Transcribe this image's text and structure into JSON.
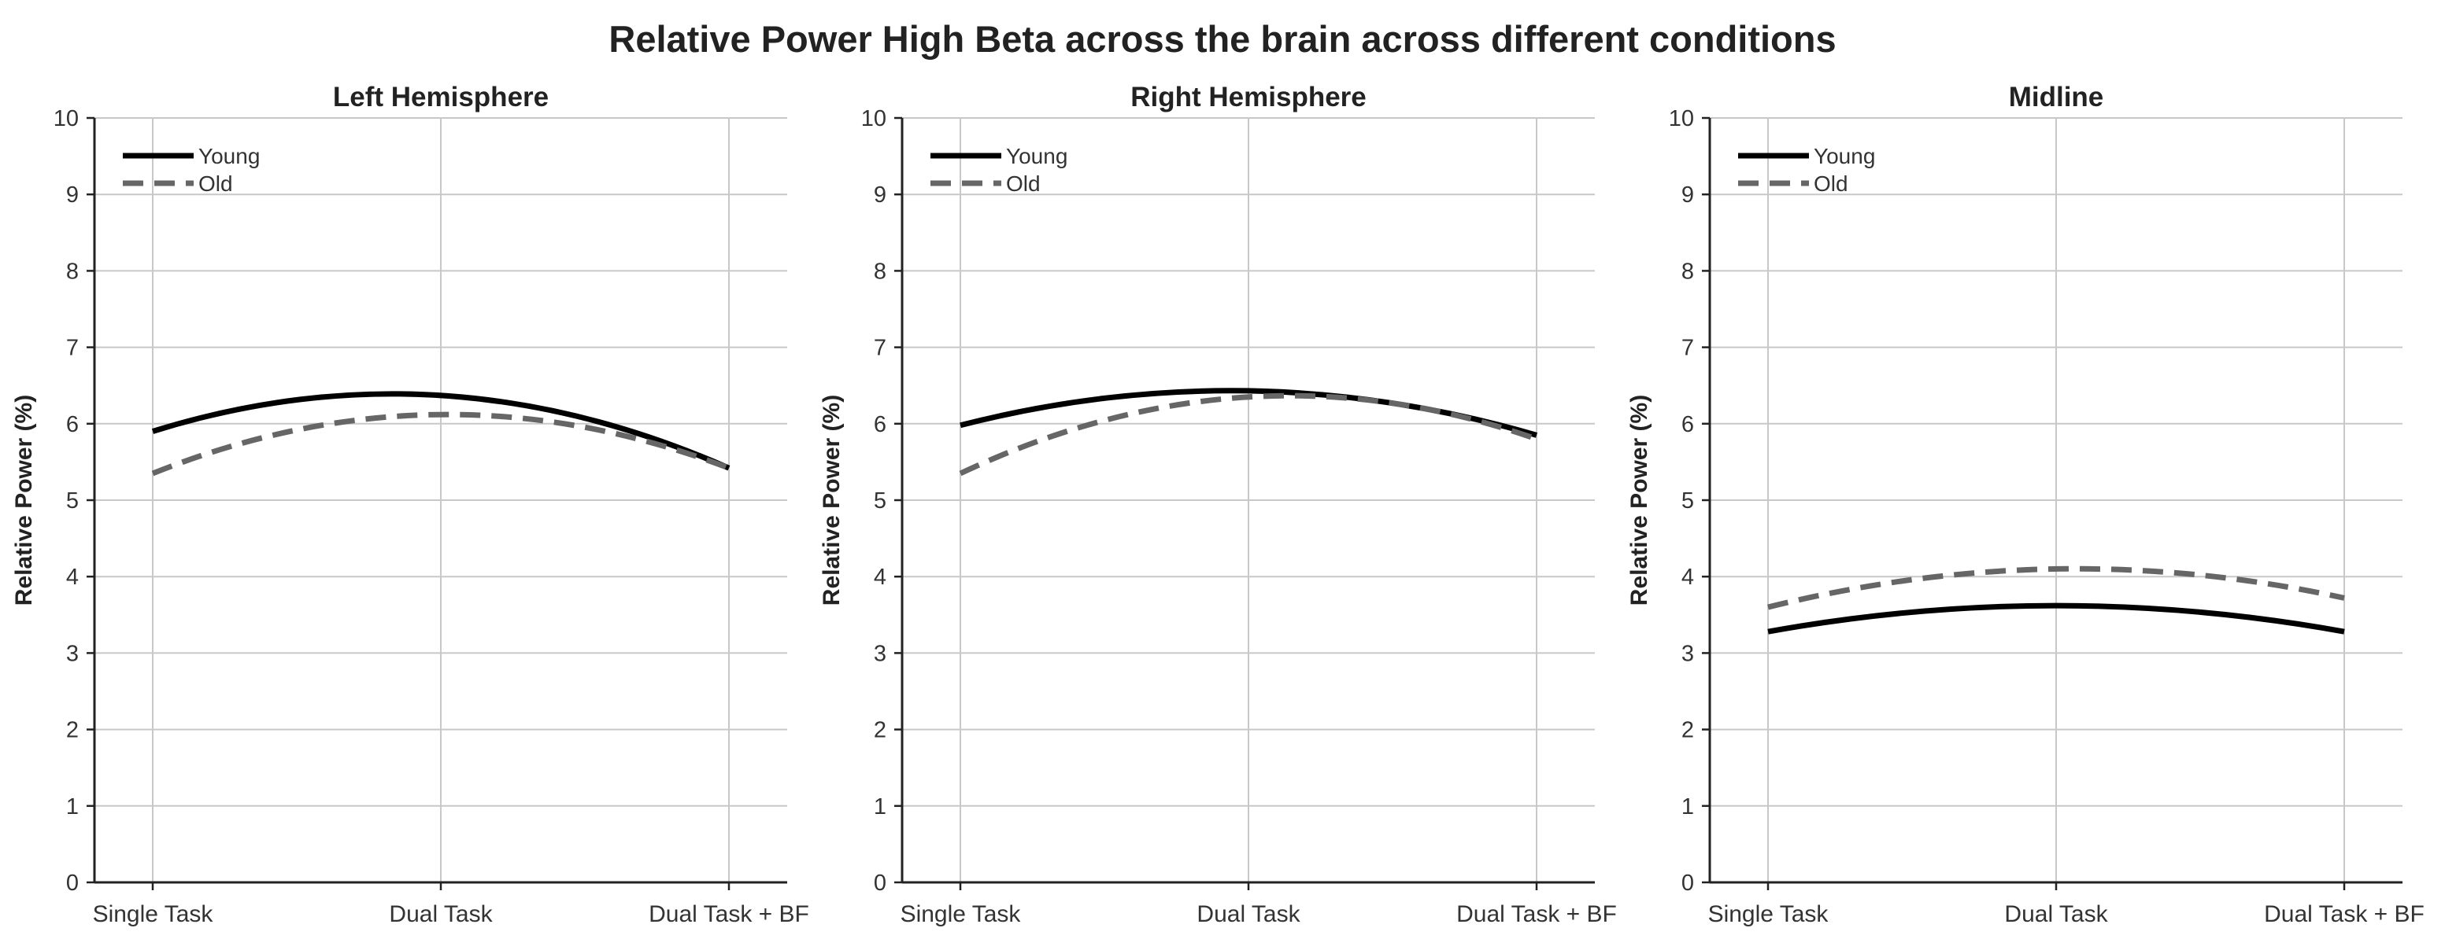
{
  "figure_title": "Relative Power High Beta across the brain across different conditions",
  "colors": {
    "young": "#000000",
    "old": "#666666",
    "grid": "#c8c8c8",
    "axis": "#222222"
  },
  "chart_data": [
    {
      "type": "line",
      "title": "Left Hemisphere",
      "xlabel": "",
      "ylabel": "Relative Power (%)",
      "categories": [
        "Single Task",
        "Dual Task",
        "Dual Task + BF"
      ],
      "ylim": [
        0,
        10
      ],
      "yticks": [
        "0",
        "1",
        "2",
        "3",
        "4",
        "5",
        "6",
        "7",
        "8",
        "9",
        "10"
      ],
      "grid": true,
      "smooth": true,
      "legend": "top-left",
      "series": [
        {
          "name": "Young",
          "style": "solid",
          "values": [
            5.9,
            6.37,
            5.42
          ]
        },
        {
          "name": "Old",
          "style": "dashed",
          "values": [
            5.35,
            6.12,
            5.42
          ]
        }
      ]
    },
    {
      "type": "line",
      "title": "Right Hemisphere",
      "xlabel": "",
      "ylabel": "Relative Power (%)",
      "categories": [
        "Single Task",
        "Dual Task",
        "Dual Task + BF"
      ],
      "ylim": [
        0,
        10
      ],
      "yticks": [
        "0",
        "1",
        "2",
        "3",
        "4",
        "5",
        "6",
        "7",
        "8",
        "9",
        "10"
      ],
      "grid": true,
      "smooth": true,
      "legend": "top-left",
      "series": [
        {
          "name": "Young",
          "style": "solid",
          "values": [
            5.98,
            6.43,
            5.85
          ]
        },
        {
          "name": "Old",
          "style": "dashed",
          "values": [
            5.35,
            6.35,
            5.8
          ]
        }
      ]
    },
    {
      "type": "line",
      "title": "Midline",
      "xlabel": "",
      "ylabel": "Relative Power (%)",
      "categories": [
        "Single Task",
        "Dual Task",
        "Dual Task + BF"
      ],
      "ylim": [
        0,
        10
      ],
      "yticks": [
        "0",
        "1",
        "2",
        "3",
        "4",
        "5",
        "6",
        "7",
        "8",
        "9",
        "10"
      ],
      "grid": true,
      "smooth": true,
      "legend": "top-left",
      "series": [
        {
          "name": "Young",
          "style": "solid",
          "values": [
            3.28,
            3.62,
            3.28
          ]
        },
        {
          "name": "Old",
          "style": "dashed",
          "values": [
            3.6,
            4.1,
            3.72
          ]
        }
      ]
    }
  ]
}
